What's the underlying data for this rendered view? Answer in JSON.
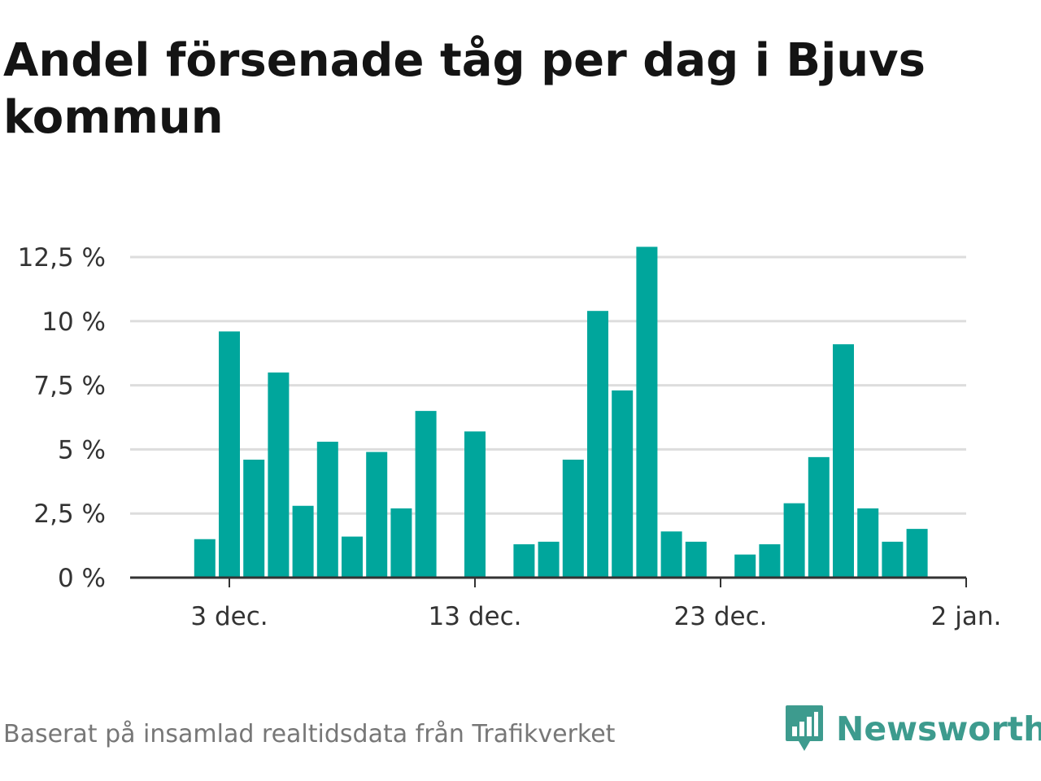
{
  "title": "Andel försenade tåg per dag i Bjuvs kommun",
  "source": "Baserat på insamlad realtidsdata från Trafikverket",
  "brand": "Newsworthy",
  "colors": {
    "bar": "#00a69c",
    "grid": "#dddddd",
    "axis": "#333333",
    "brand": "#3d9b8e"
  },
  "chart_data": {
    "type": "bar",
    "ylim": [
      0,
      12.5
    ],
    "yticks": [
      "0 %",
      "2,5 %",
      "5 %",
      "7,5 %",
      "10 %",
      "12,5 %"
    ],
    "ytick_values": [
      0,
      2.5,
      5,
      7.5,
      10,
      12.5
    ],
    "xticks": [
      "3 dec.",
      "13 dec.",
      "23 dec.",
      "2 jan."
    ],
    "xtick_days": [
      3,
      13,
      23,
      33
    ],
    "x_days": [
      2,
      3,
      4,
      5,
      6,
      7,
      8,
      9,
      10,
      11,
      12,
      13,
      14,
      15,
      16,
      17,
      18,
      19,
      20,
      21,
      22,
      23,
      24,
      25,
      26,
      27,
      28,
      29,
      30,
      31
    ],
    "categories": [
      "2 dec.",
      "3 dec.",
      "4 dec.",
      "5 dec.",
      "6 dec.",
      "7 dec.",
      "8 dec.",
      "9 dec.",
      "10 dec.",
      "11 dec.",
      "12 dec.",
      "13 dec.",
      "14 dec.",
      "15 dec.",
      "16 dec.",
      "17 dec.",
      "18 dec.",
      "19 dec.",
      "20 dec.",
      "21 dec.",
      "22 dec.",
      "23 dec.",
      "24 dec.",
      "25 dec.",
      "26 dec.",
      "27 dec.",
      "28 dec.",
      "29 dec.",
      "30 dec.",
      "31 dec."
    ],
    "values": [
      1.5,
      9.6,
      4.6,
      8.0,
      2.8,
      5.3,
      1.6,
      4.9,
      2.7,
      6.5,
      0,
      5.7,
      0,
      1.3,
      1.4,
      4.6,
      10.4,
      7.3,
      12.9,
      1.8,
      1.4,
      0,
      0.9,
      1.3,
      2.9,
      4.7,
      9.1,
      2.7,
      1.4,
      1.9
    ]
  }
}
